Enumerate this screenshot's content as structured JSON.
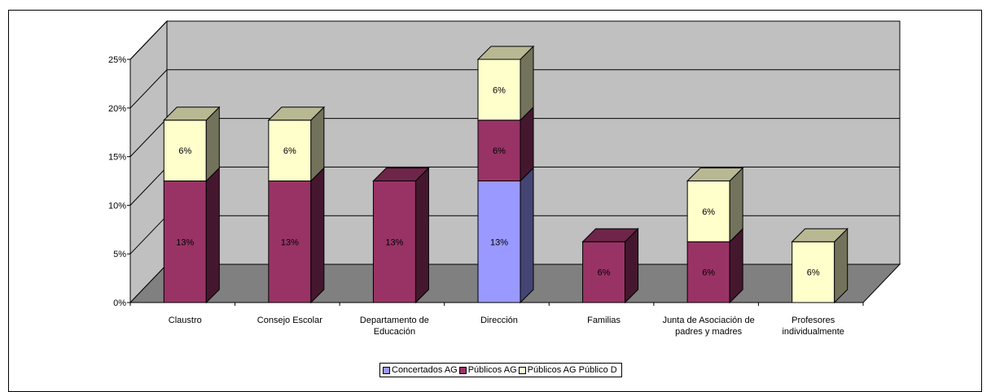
{
  "chart_data": {
    "type": "bar",
    "stacked": true,
    "three_d": true,
    "categories": [
      [
        "Claustro"
      ],
      [
        "Consejo Escolar"
      ],
      [
        "Departamento de",
        "Educación"
      ],
      [
        "Dirección"
      ],
      [
        "Familias"
      ],
      [
        "Junta de Asociación de",
        "padres y madres"
      ],
      [
        "Profesores",
        "individualmente"
      ]
    ],
    "series": [
      {
        "name": "Concertados AG",
        "color": "#9999ff",
        "values": [
          0,
          0,
          0,
          12.5,
          0,
          0,
          0
        ],
        "labels": [
          "",
          "",
          "",
          "13%",
          "",
          "",
          ""
        ]
      },
      {
        "name": "Públicos AG",
        "color": "#993366",
        "values": [
          12.5,
          12.5,
          12.5,
          6.25,
          6.25,
          6.25,
          0
        ],
        "labels": [
          "13%",
          "13%",
          "13%",
          "6%",
          "6%",
          "6%",
          ""
        ]
      },
      {
        "name": "Públicos AG Público D",
        "color": "#ffffcc",
        "values": [
          6.25,
          6.25,
          0,
          6.25,
          0,
          6.25,
          6.25
        ],
        "labels": [
          "6%",
          "6%",
          "",
          "6%",
          "",
          "6%",
          "6%"
        ]
      }
    ],
    "yticks": [
      "0%",
      "5%",
      "10%",
      "15%",
      "20%",
      "25%"
    ],
    "ylim": [
      0,
      25
    ],
    "grid": true,
    "legend_position": "bottom"
  }
}
